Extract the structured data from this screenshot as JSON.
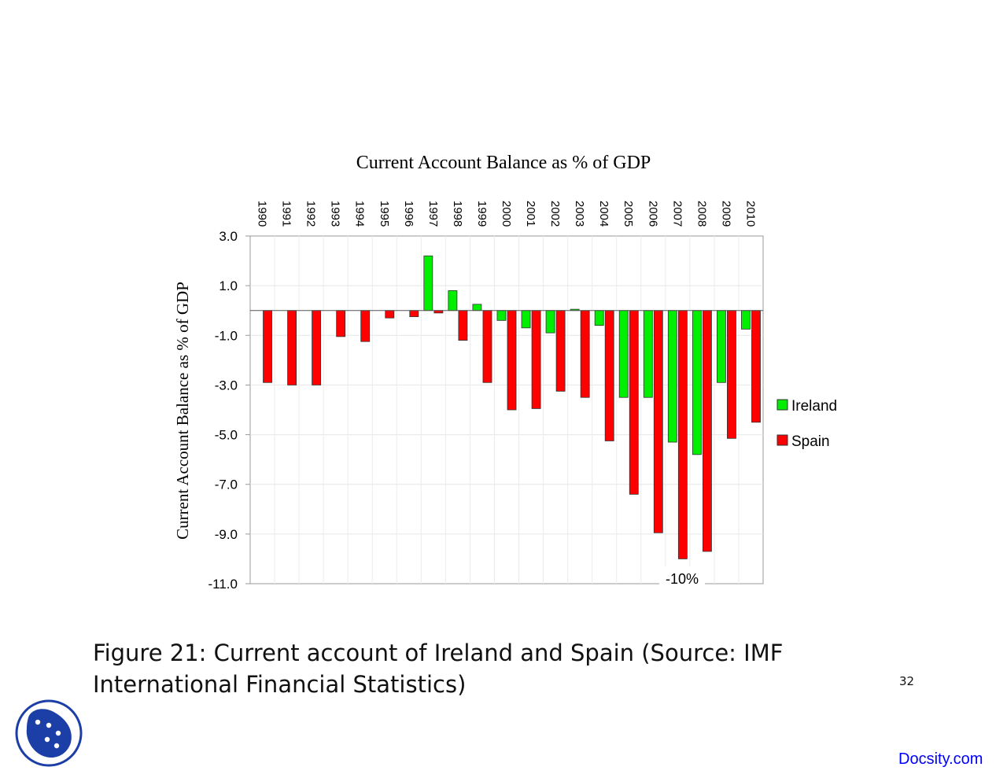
{
  "chart_data": {
    "type": "bar",
    "title": "Current Account Balance as % of GDP",
    "xlabel": "",
    "ylabel": "Current Account Balance as % of GDP",
    "categories": [
      "1990",
      "1991",
      "1992",
      "1993",
      "1994",
      "1995",
      "1996",
      "1997",
      "1998",
      "1999",
      "2000",
      "2001",
      "2002",
      "2003",
      "2004",
      "2005",
      "2006",
      "2007",
      "2008",
      "2009",
      "2010"
    ],
    "series": [
      {
        "name": "Ireland",
        "color": "#00ee00",
        "values": [
          0,
          0,
          0,
          0,
          0,
          0,
          0,
          2.2,
          0.8,
          0.25,
          -0.4,
          -0.7,
          -0.9,
          0.05,
          -0.6,
          -3.5,
          -3.5,
          -5.3,
          -5.8,
          -2.9,
          -0.75
        ]
      },
      {
        "name": "Spain",
        "color": "#ff0000",
        "values": [
          -2.9,
          -3.0,
          -3.0,
          -1.05,
          -1.25,
          -0.3,
          -0.25,
          -0.1,
          -1.2,
          -2.9,
          -4.0,
          -3.95,
          -3.25,
          -3.5,
          -5.25,
          -7.4,
          -8.95,
          -10.0,
          -9.7,
          -5.15,
          -4.5
        ]
      }
    ],
    "ylim": [
      -11.0,
      3.0
    ],
    "yticks": [
      "3.0",
      "1.0",
      "-1.0",
      "-3.0",
      "-5.0",
      "-7.0",
      "-9.0",
      "-11.0"
    ],
    "legend": "right",
    "grid": true,
    "annotation": "-10%"
  },
  "figure": {
    "caption": "Figure 21: Current account of Ireland and Spain (Source: IMF International Financial Statistics)",
    "page_number": "32"
  },
  "footer": {
    "link_text": "Docsity.com",
    "link_color": "#0000ff",
    "logo_color": "#1b3fa6"
  }
}
